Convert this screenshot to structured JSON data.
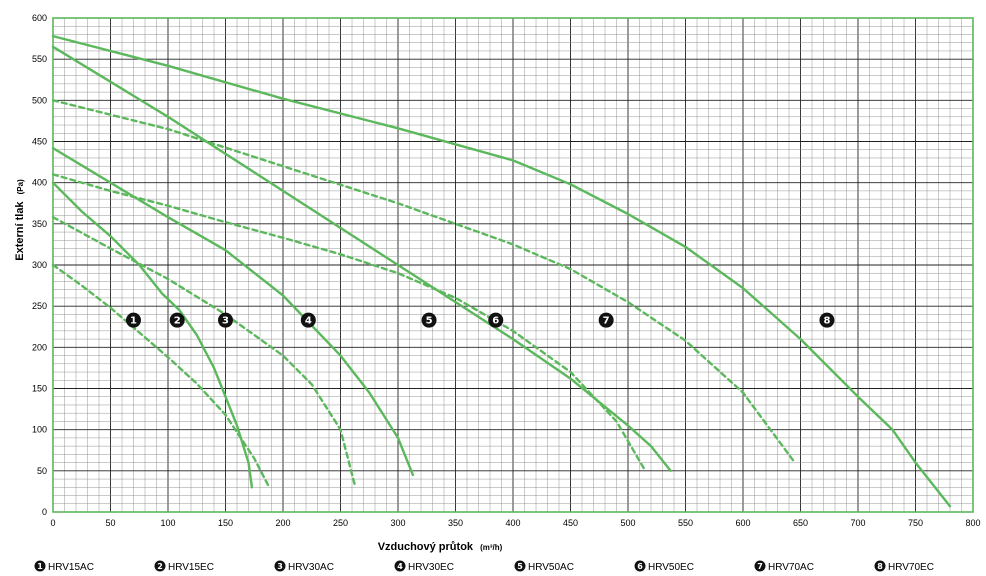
{
  "chart_data": {
    "type": "line",
    "xlabel": "Vzduchový průtok",
    "xunit": "(m³/h)",
    "ylabel": "Externí tlak",
    "yunit": "(Pa)",
    "xlim": [
      0,
      800
    ],
    "ylim": [
      0,
      600
    ],
    "xticks": [
      "0",
      "50",
      "100",
      "150",
      "200",
      "250",
      "300",
      "350",
      "400",
      "450",
      "500",
      "550",
      "600",
      "650",
      "700",
      "750",
      "800"
    ],
    "yticks": [
      "0",
      "50",
      "100",
      "150",
      "200",
      "250",
      "300",
      "350",
      "400",
      "450",
      "500",
      "550",
      "600"
    ],
    "grid": true,
    "line_color": "#5cb85c",
    "series": [
      {
        "name": "HRV15AC",
        "number": "1",
        "style": "dashed",
        "x": [
          0,
          25,
          50,
          75,
          100,
          125,
          150,
          175,
          188
        ],
        "y": [
          300,
          275,
          248,
          218,
          188,
          156,
          118,
          65,
          30
        ],
        "marker": [
          70,
          233
        ]
      },
      {
        "name": "HRV15EC",
        "number": "2",
        "style": "solid",
        "x": [
          0,
          25,
          50,
          75,
          95,
          110,
          125,
          140,
          150,
          160,
          170,
          173
        ],
        "y": [
          400,
          365,
          335,
          300,
          265,
          245,
          215,
          175,
          140,
          105,
          60,
          30
        ],
        "marker": [
          108,
          233
        ]
      },
      {
        "name": "HRV30AC",
        "number": "3",
        "style": "dashed",
        "x": [
          0,
          50,
          100,
          150,
          200,
          225,
          250,
          263
        ],
        "y": [
          358,
          320,
          283,
          240,
          190,
          155,
          100,
          30
        ],
        "marker": [
          150,
          233
        ]
      },
      {
        "name": "HRV30EC",
        "number": "4",
        "style": "solid",
        "x": [
          0,
          50,
          100,
          150,
          200,
          250,
          275,
          300,
          313
        ],
        "y": [
          442,
          400,
          358,
          318,
          263,
          190,
          145,
          90,
          45
        ],
        "marker": [
          222,
          233
        ]
      },
      {
        "name": "HRV50AC",
        "number": "5",
        "style": "dashed",
        "x": [
          0,
          50,
          100,
          150,
          200,
          250,
          300,
          350,
          400,
          450,
          490,
          515
        ],
        "y": [
          410,
          390,
          372,
          352,
          333,
          313,
          290,
          260,
          220,
          170,
          110,
          50
        ],
        "marker": [
          327,
          233
        ]
      },
      {
        "name": "HRV50EC",
        "number": "6",
        "style": "solid",
        "x": [
          0,
          100,
          200,
          300,
          400,
          450,
          500,
          520,
          537
        ],
        "y": [
          565,
          480,
          390,
          300,
          210,
          162,
          105,
          80,
          50
        ],
        "marker": [
          385,
          233
        ]
      },
      {
        "name": "HRV70AC",
        "number": "7",
        "style": "dashed",
        "x": [
          0,
          100,
          200,
          300,
          400,
          450,
          500,
          550,
          600,
          645
        ],
        "y": [
          500,
          465,
          420,
          375,
          325,
          295,
          255,
          208,
          145,
          60
        ],
        "marker": [
          481,
          233
        ]
      },
      {
        "name": "HRV70EC",
        "number": "8",
        "style": "solid",
        "x": [
          0,
          100,
          200,
          300,
          400,
          450,
          500,
          550,
          600,
          650,
          700,
          730,
          750,
          780
        ],
        "y": [
          578,
          542,
          502,
          466,
          427,
          398,
          362,
          322,
          272,
          210,
          140,
          100,
          60,
          7
        ],
        "marker": [
          673,
          233
        ]
      }
    ]
  }
}
